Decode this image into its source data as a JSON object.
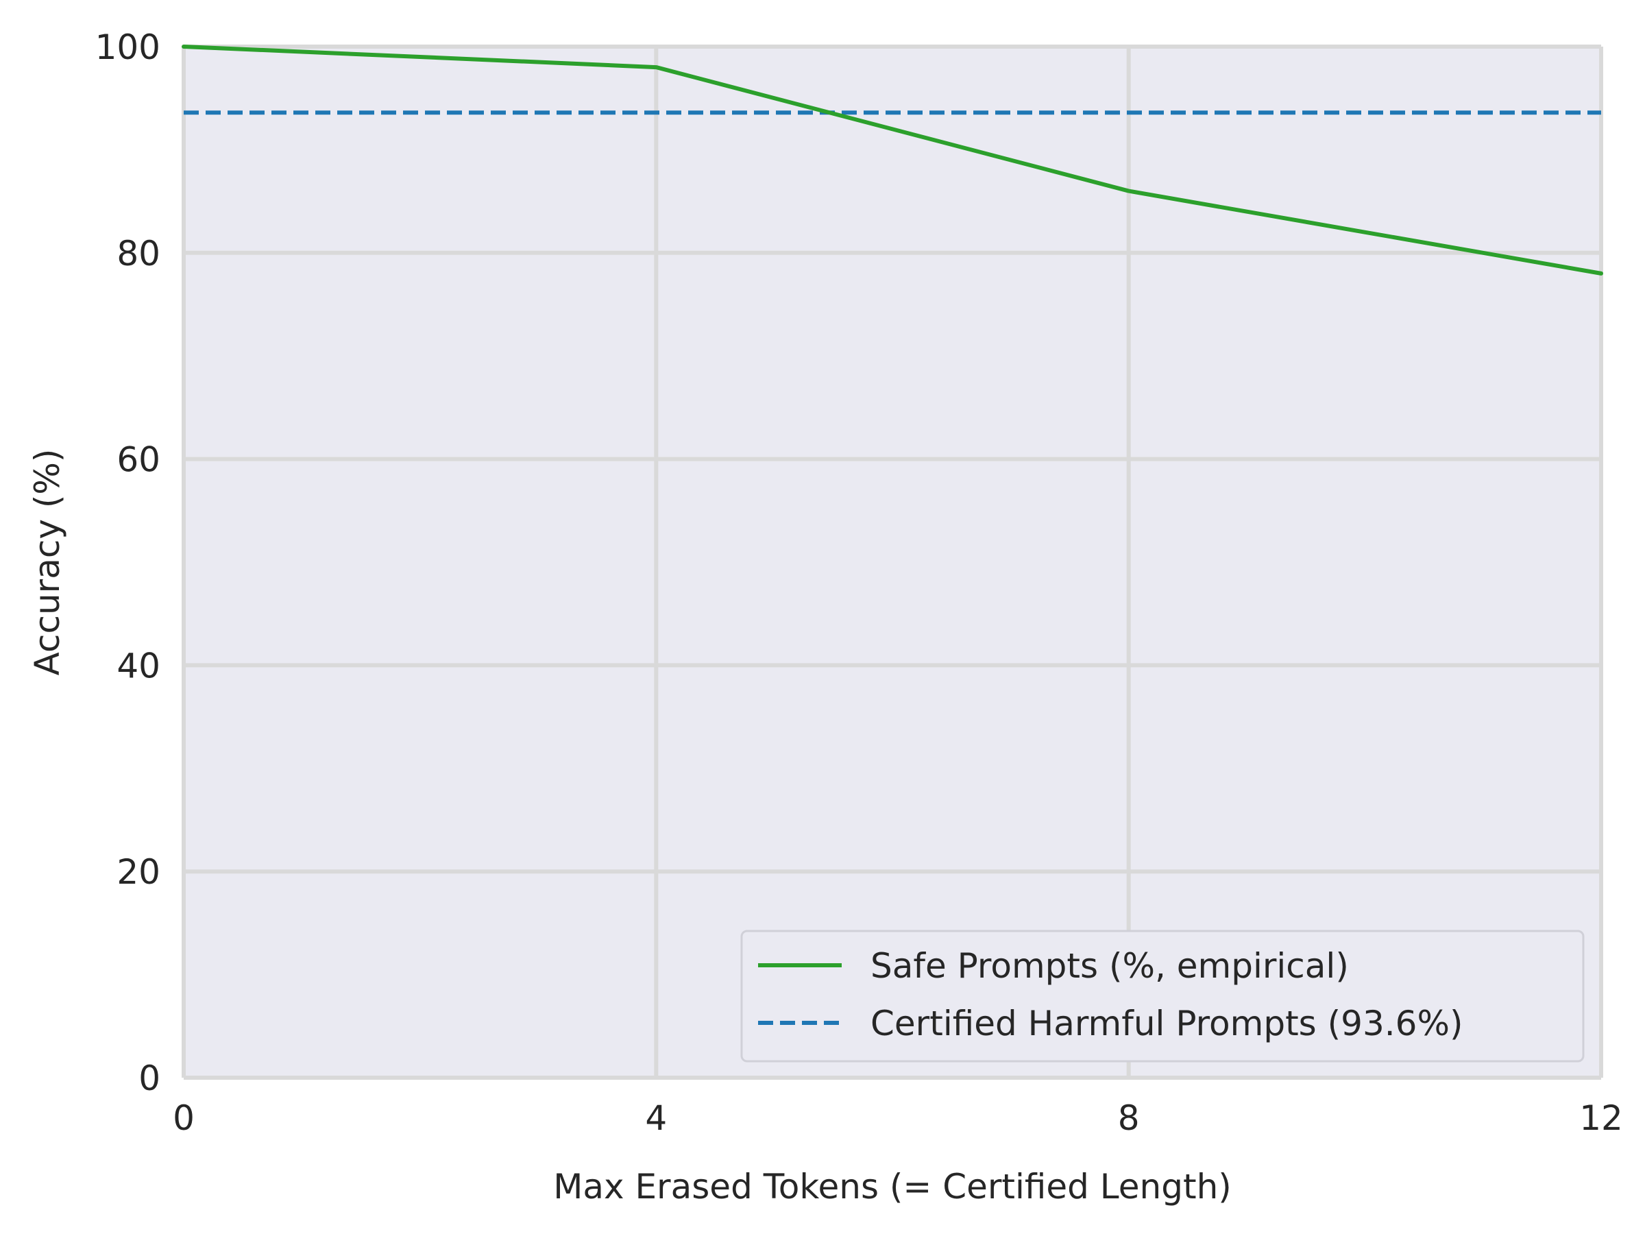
{
  "chart_data": {
    "type": "line",
    "title": "",
    "xlabel": "Max Erased Tokens (= Certified Length)",
    "ylabel": "Accuracy (%)",
    "xlim": [
      0,
      12
    ],
    "ylim": [
      0,
      100
    ],
    "xticks": [
      0,
      4,
      8,
      12
    ],
    "yticks": [
      0,
      20,
      40,
      60,
      80,
      100
    ],
    "grid": true,
    "legend_position": "lower-right",
    "series": [
      {
        "name": "Safe Prompts (%, empirical)",
        "style": "solid",
        "color": "#2ca02c",
        "x": [
          0,
          4,
          8,
          12
        ],
        "y": [
          100,
          98,
          86,
          78
        ]
      }
    ],
    "hlines": [
      {
        "name": "Certified Harmful Prompts (93.6%)",
        "style": "dashed",
        "color": "#1f77b4",
        "y": 93.6
      }
    ],
    "background_color": "#eaeaf2",
    "grid_color": "#d9d9d9"
  }
}
